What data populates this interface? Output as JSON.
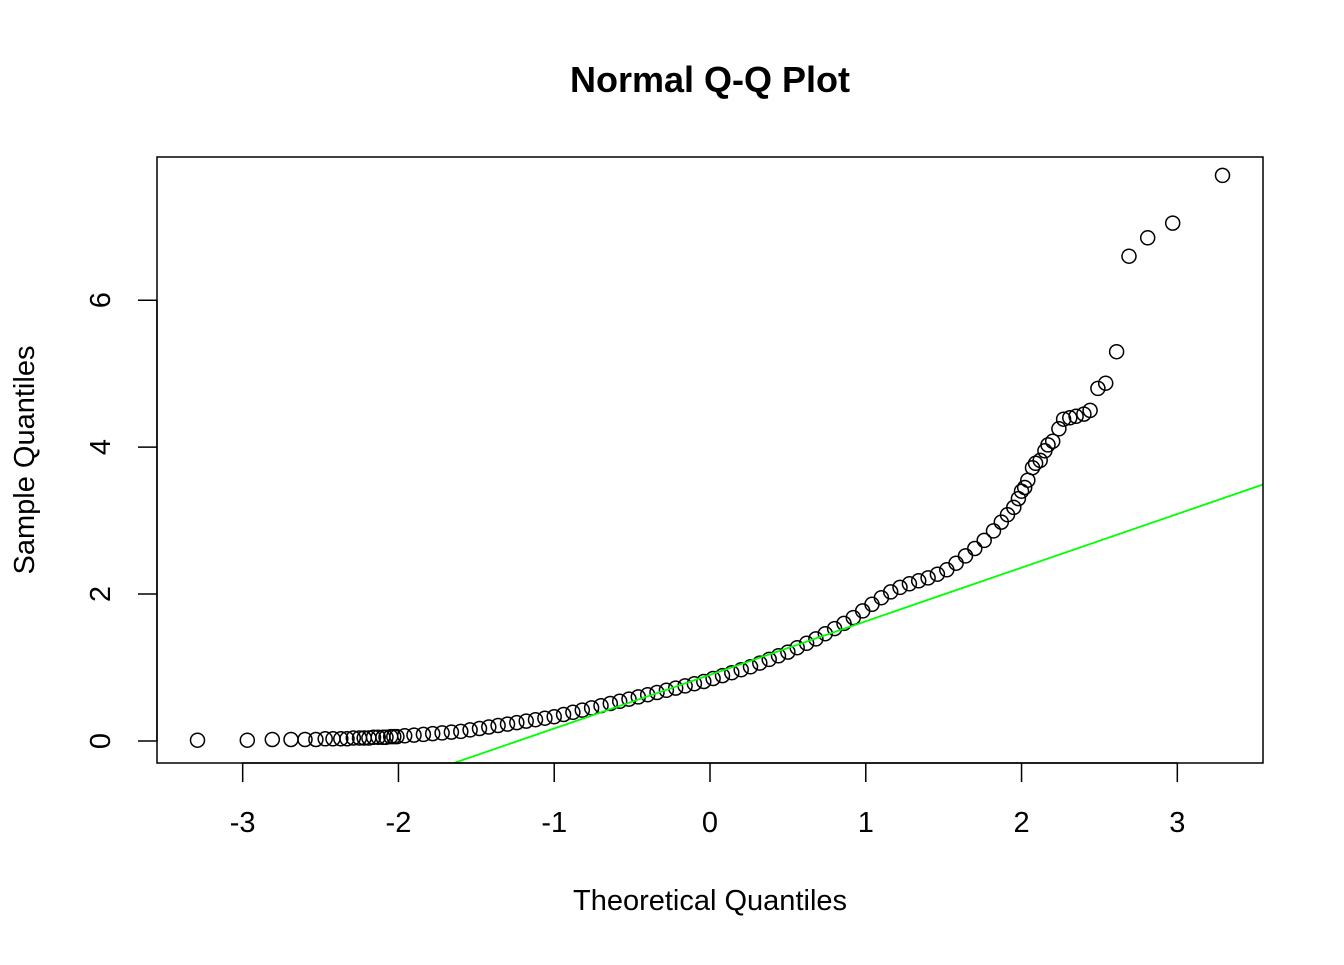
{
  "chart_data": {
    "type": "scatter",
    "title": "Normal Q-Q Plot",
    "xlabel": "Theoretical Quantiles",
    "ylabel": "Sample Quantiles",
    "xlim": [
      -3.55,
      3.55
    ],
    "ylim": [
      -0.3,
      7.95
    ],
    "x_ticks": [
      -3,
      -2,
      -1,
      0,
      1,
      2,
      3
    ],
    "y_ticks": [
      0,
      2,
      4,
      6
    ],
    "grid": false,
    "legend": "none",
    "marker": "open-circle",
    "reference_line": {
      "intercept": 0.9,
      "slope": 0.73,
      "color": "#00ff00"
    },
    "series": [
      {
        "points": [
          [
            -3.29,
            0.01
          ],
          [
            -2.97,
            0.01
          ],
          [
            -2.81,
            0.02
          ],
          [
            -2.69,
            0.02
          ],
          [
            -2.6,
            0.02
          ],
          [
            -2.53,
            0.02
          ],
          [
            -2.47,
            0.03
          ],
          [
            -2.42,
            0.03
          ],
          [
            -2.37,
            0.03
          ],
          [
            -2.33,
            0.03
          ],
          [
            -2.29,
            0.04
          ],
          [
            -2.25,
            0.04
          ],
          [
            -2.22,
            0.04
          ],
          [
            -2.19,
            0.04
          ],
          [
            -2.16,
            0.05
          ],
          [
            -2.13,
            0.05
          ],
          [
            -2.1,
            0.05
          ],
          [
            -2.08,
            0.05
          ],
          [
            -2.05,
            0.06
          ],
          [
            -2.03,
            0.06
          ],
          [
            -2.01,
            0.06
          ],
          [
            -1.96,
            0.07
          ],
          [
            -1.9,
            0.08
          ],
          [
            -1.84,
            0.09
          ],
          [
            -1.78,
            0.1
          ],
          [
            -1.72,
            0.11
          ],
          [
            -1.66,
            0.12
          ],
          [
            -1.6,
            0.13
          ],
          [
            -1.54,
            0.15
          ],
          [
            -1.48,
            0.17
          ],
          [
            -1.42,
            0.19
          ],
          [
            -1.36,
            0.21
          ],
          [
            -1.3,
            0.23
          ],
          [
            -1.24,
            0.25
          ],
          [
            -1.18,
            0.27
          ],
          [
            -1.12,
            0.29
          ],
          [
            -1.06,
            0.31
          ],
          [
            -1.0,
            0.33
          ],
          [
            -0.94,
            0.36
          ],
          [
            -0.88,
            0.39
          ],
          [
            -0.82,
            0.42
          ],
          [
            -0.76,
            0.45
          ],
          [
            -0.7,
            0.48
          ],
          [
            -0.64,
            0.51
          ],
          [
            -0.58,
            0.54
          ],
          [
            -0.52,
            0.57
          ],
          [
            -0.46,
            0.6
          ],
          [
            -0.4,
            0.63
          ],
          [
            -0.34,
            0.66
          ],
          [
            -0.28,
            0.69
          ],
          [
            -0.22,
            0.72
          ],
          [
            -0.16,
            0.75
          ],
          [
            -0.1,
            0.78
          ],
          [
            -0.04,
            0.81
          ],
          [
            0.02,
            0.85
          ],
          [
            0.08,
            0.89
          ],
          [
            0.14,
            0.93
          ],
          [
            0.2,
            0.97
          ],
          [
            0.26,
            1.01
          ],
          [
            0.32,
            1.06
          ],
          [
            0.38,
            1.11
          ],
          [
            0.44,
            1.16
          ],
          [
            0.5,
            1.21
          ],
          [
            0.56,
            1.27
          ],
          [
            0.62,
            1.33
          ],
          [
            0.68,
            1.39
          ],
          [
            0.74,
            1.46
          ],
          [
            0.8,
            1.53
          ],
          [
            0.86,
            1.6
          ],
          [
            0.92,
            1.68
          ],
          [
            0.98,
            1.77
          ],
          [
            1.04,
            1.86
          ],
          [
            1.1,
            1.95
          ],
          [
            1.16,
            2.03
          ],
          [
            1.22,
            2.09
          ],
          [
            1.28,
            2.14
          ],
          [
            1.34,
            2.18
          ],
          [
            1.4,
            2.22
          ],
          [
            1.46,
            2.27
          ],
          [
            1.52,
            2.33
          ],
          [
            1.58,
            2.42
          ],
          [
            1.64,
            2.52
          ],
          [
            1.7,
            2.62
          ],
          [
            1.76,
            2.73
          ],
          [
            1.82,
            2.86
          ],
          [
            1.87,
            2.98
          ],
          [
            1.91,
            3.08
          ],
          [
            1.95,
            3.18
          ],
          [
            1.98,
            3.3
          ],
          [
            2.0,
            3.4
          ],
          [
            2.02,
            3.45
          ],
          [
            2.04,
            3.55
          ],
          [
            2.07,
            3.72
          ],
          [
            2.09,
            3.78
          ],
          [
            2.12,
            3.82
          ],
          [
            2.15,
            3.95
          ],
          [
            2.17,
            4.03
          ],
          [
            2.2,
            4.08
          ],
          [
            2.24,
            4.25
          ],
          [
            2.27,
            4.38
          ],
          [
            2.31,
            4.4
          ],
          [
            2.35,
            4.42
          ],
          [
            2.4,
            4.45
          ],
          [
            2.44,
            4.5
          ],
          [
            2.49,
            4.8
          ],
          [
            2.54,
            4.87
          ],
          [
            2.61,
            5.3
          ],
          [
            2.69,
            6.6
          ],
          [
            2.81,
            6.85
          ],
          [
            2.97,
            7.05
          ],
          [
            3.29,
            7.7
          ]
        ]
      }
    ]
  }
}
